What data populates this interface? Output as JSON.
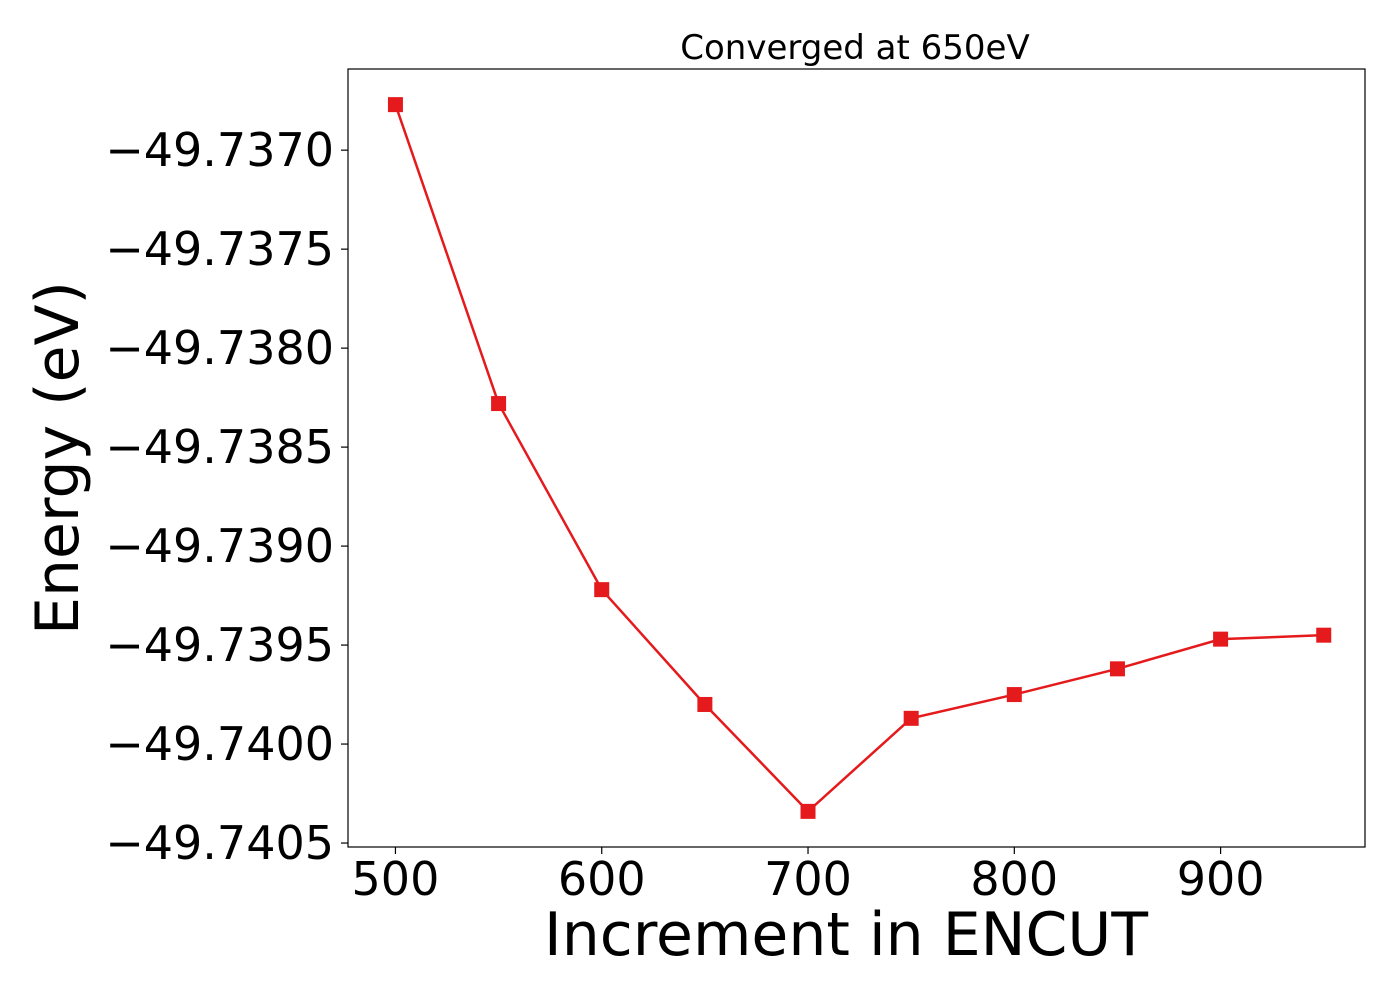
{
  "chart_data": {
    "type": "line",
    "title": "Converged at 650eV",
    "xlabel": "Increment in ENCUT",
    "ylabel": "Energy (eV)",
    "x": [
      500,
      550,
      600,
      650,
      700,
      750,
      800,
      850,
      900,
      950
    ],
    "series": [
      {
        "values": [
          -49.73677,
          -49.73828,
          -49.73922,
          -49.7398,
          -49.74034,
          -49.73987,
          -49.73975,
          -49.73962,
          -49.73947,
          -49.73945
        ],
        "color": "#e41a1c",
        "marker": "square"
      }
    ],
    "xlim": [
      477,
      970
    ],
    "ylim": [
      -49.74052,
      -49.73659
    ],
    "xticks": [
      500,
      600,
      700,
      800,
      900
    ],
    "yticks": [
      -49.737,
      -49.7375,
      -49.738,
      -49.7385,
      -49.739,
      -49.7395,
      -49.74,
      -49.7405
    ],
    "xtick_labels": [
      "500",
      "600",
      "700",
      "800",
      "900"
    ],
    "ytick_labels": [
      "−49.7370",
      "−49.7375",
      "−49.7380",
      "−49.7385",
      "−49.7390",
      "−49.7395",
      "−49.7400",
      "−49.7405"
    ],
    "grid": false,
    "legend": "none"
  }
}
